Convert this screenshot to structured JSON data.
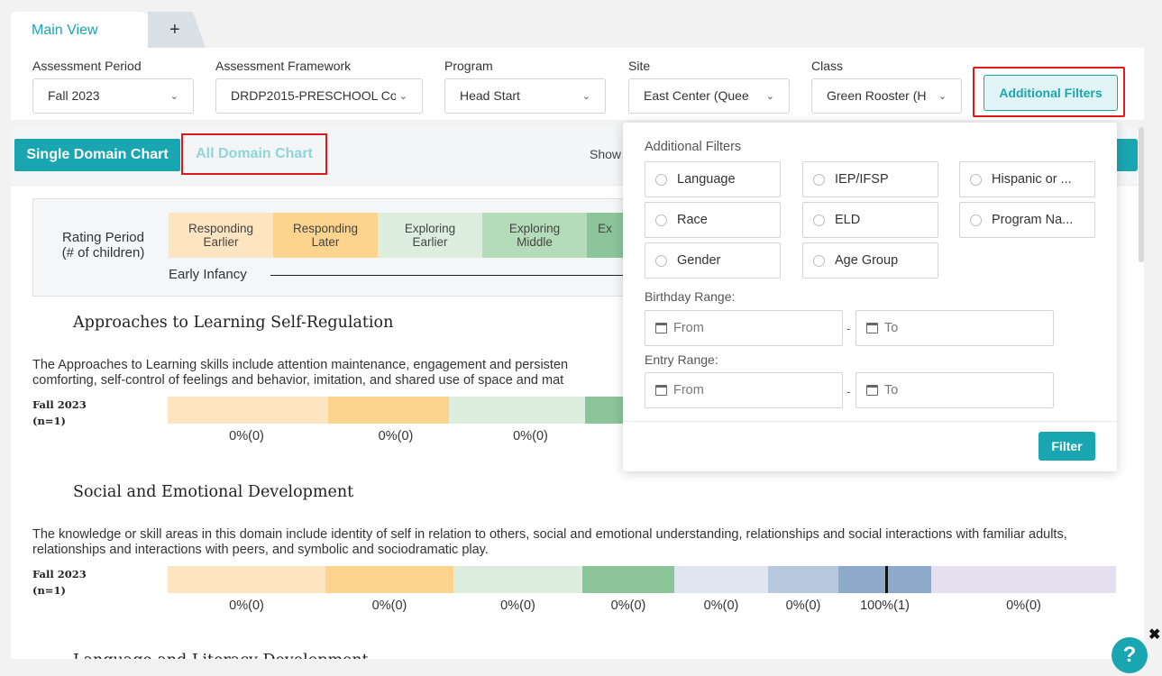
{
  "tabs": {
    "main_label": "Main View",
    "add_label": "+"
  },
  "filters": {
    "assessment_period": {
      "label": "Assessment Period",
      "value": "Fall 2023"
    },
    "framework": {
      "label": "Assessment Framework",
      "value": "DRDP2015-PRESCHOOL Co"
    },
    "program": {
      "label": "Program",
      "value": "Head Start"
    },
    "site": {
      "label": "Site",
      "value": "East Center (Quee"
    },
    "class": {
      "label": "Class",
      "value": "Green Rooster (H"
    },
    "additional_button": "Additional Filters",
    "chevron": "chevron-down-icon"
  },
  "chart_toolbar": {
    "single_label": "Single Domain Chart",
    "all_label": "All Domain Chart",
    "show_text": "Show"
  },
  "legend": {
    "rating_label_line1": "Rating Period",
    "rating_label_line2": "(# of children)",
    "cells": [
      {
        "line1": "Responding",
        "line2": "Earlier",
        "color": "#fde5c1"
      },
      {
        "line1": "Responding",
        "line2": "Later",
        "color": "#fcd48e"
      },
      {
        "line1": "Exploring",
        "line2": "Earlier",
        "color": "#ddeedf"
      },
      {
        "line1": "Exploring",
        "line2": "Middle",
        "color": "#b5dcb9"
      },
      {
        "line1": "Ex",
        "line2": "",
        "color": "#8cc59a"
      }
    ],
    "range_label": "Early Infancy"
  },
  "domains": [
    {
      "title": "Approaches to Learning Self-Regulation",
      "description": "The Approaches to Learning skills include attention maintenance, engagement and persisten comforting, self-control of feelings and behavior, imitation, and shared use of space and mat",
      "row_period": "Fall 2023",
      "row_n": "(n=1)",
      "labels": [
        "0%(0)",
        "0%(0)",
        "0%(0)"
      ]
    },
    {
      "title": "Social and Emotional Development",
      "description": "The knowledge or skill areas in this domain include identity of self in relation to others, social and emotional understanding, relationships and social interactions with familiar adults, relationships and interactions with peers, and symbolic and sociodramatic play.",
      "row_period": "Fall 2023",
      "row_n": "(n=1)",
      "labels": [
        "0%(0)",
        "0%(0)",
        "0%(0)",
        "0%(0)",
        "0%(0)",
        "0%(0)",
        "100%(1)",
        "0%(0)"
      ]
    }
  ],
  "bar_colors": [
    "#fde5c1",
    "#fcd48e",
    "#ddeedf",
    "#8cc59a",
    "#dfe6f1",
    "#b7c9df",
    "#8ea9c9",
    "#e6dff0"
  ],
  "next_domain_title": "Language and Literacy Development",
  "popup": {
    "title": "Additional Filters",
    "options": [
      "Language",
      "IEP/IFSP",
      "Hispanic or ...",
      "Race",
      "ELD",
      "Program Na...",
      "Gender",
      "Age Group"
    ],
    "birthday_label": "Birthday Range:",
    "entry_label": "Entry Range:",
    "from_placeholder": "From",
    "to_placeholder": "To",
    "dash": "-",
    "filter_button": "Filter"
  },
  "help_label": "?",
  "close_label": "✖"
}
